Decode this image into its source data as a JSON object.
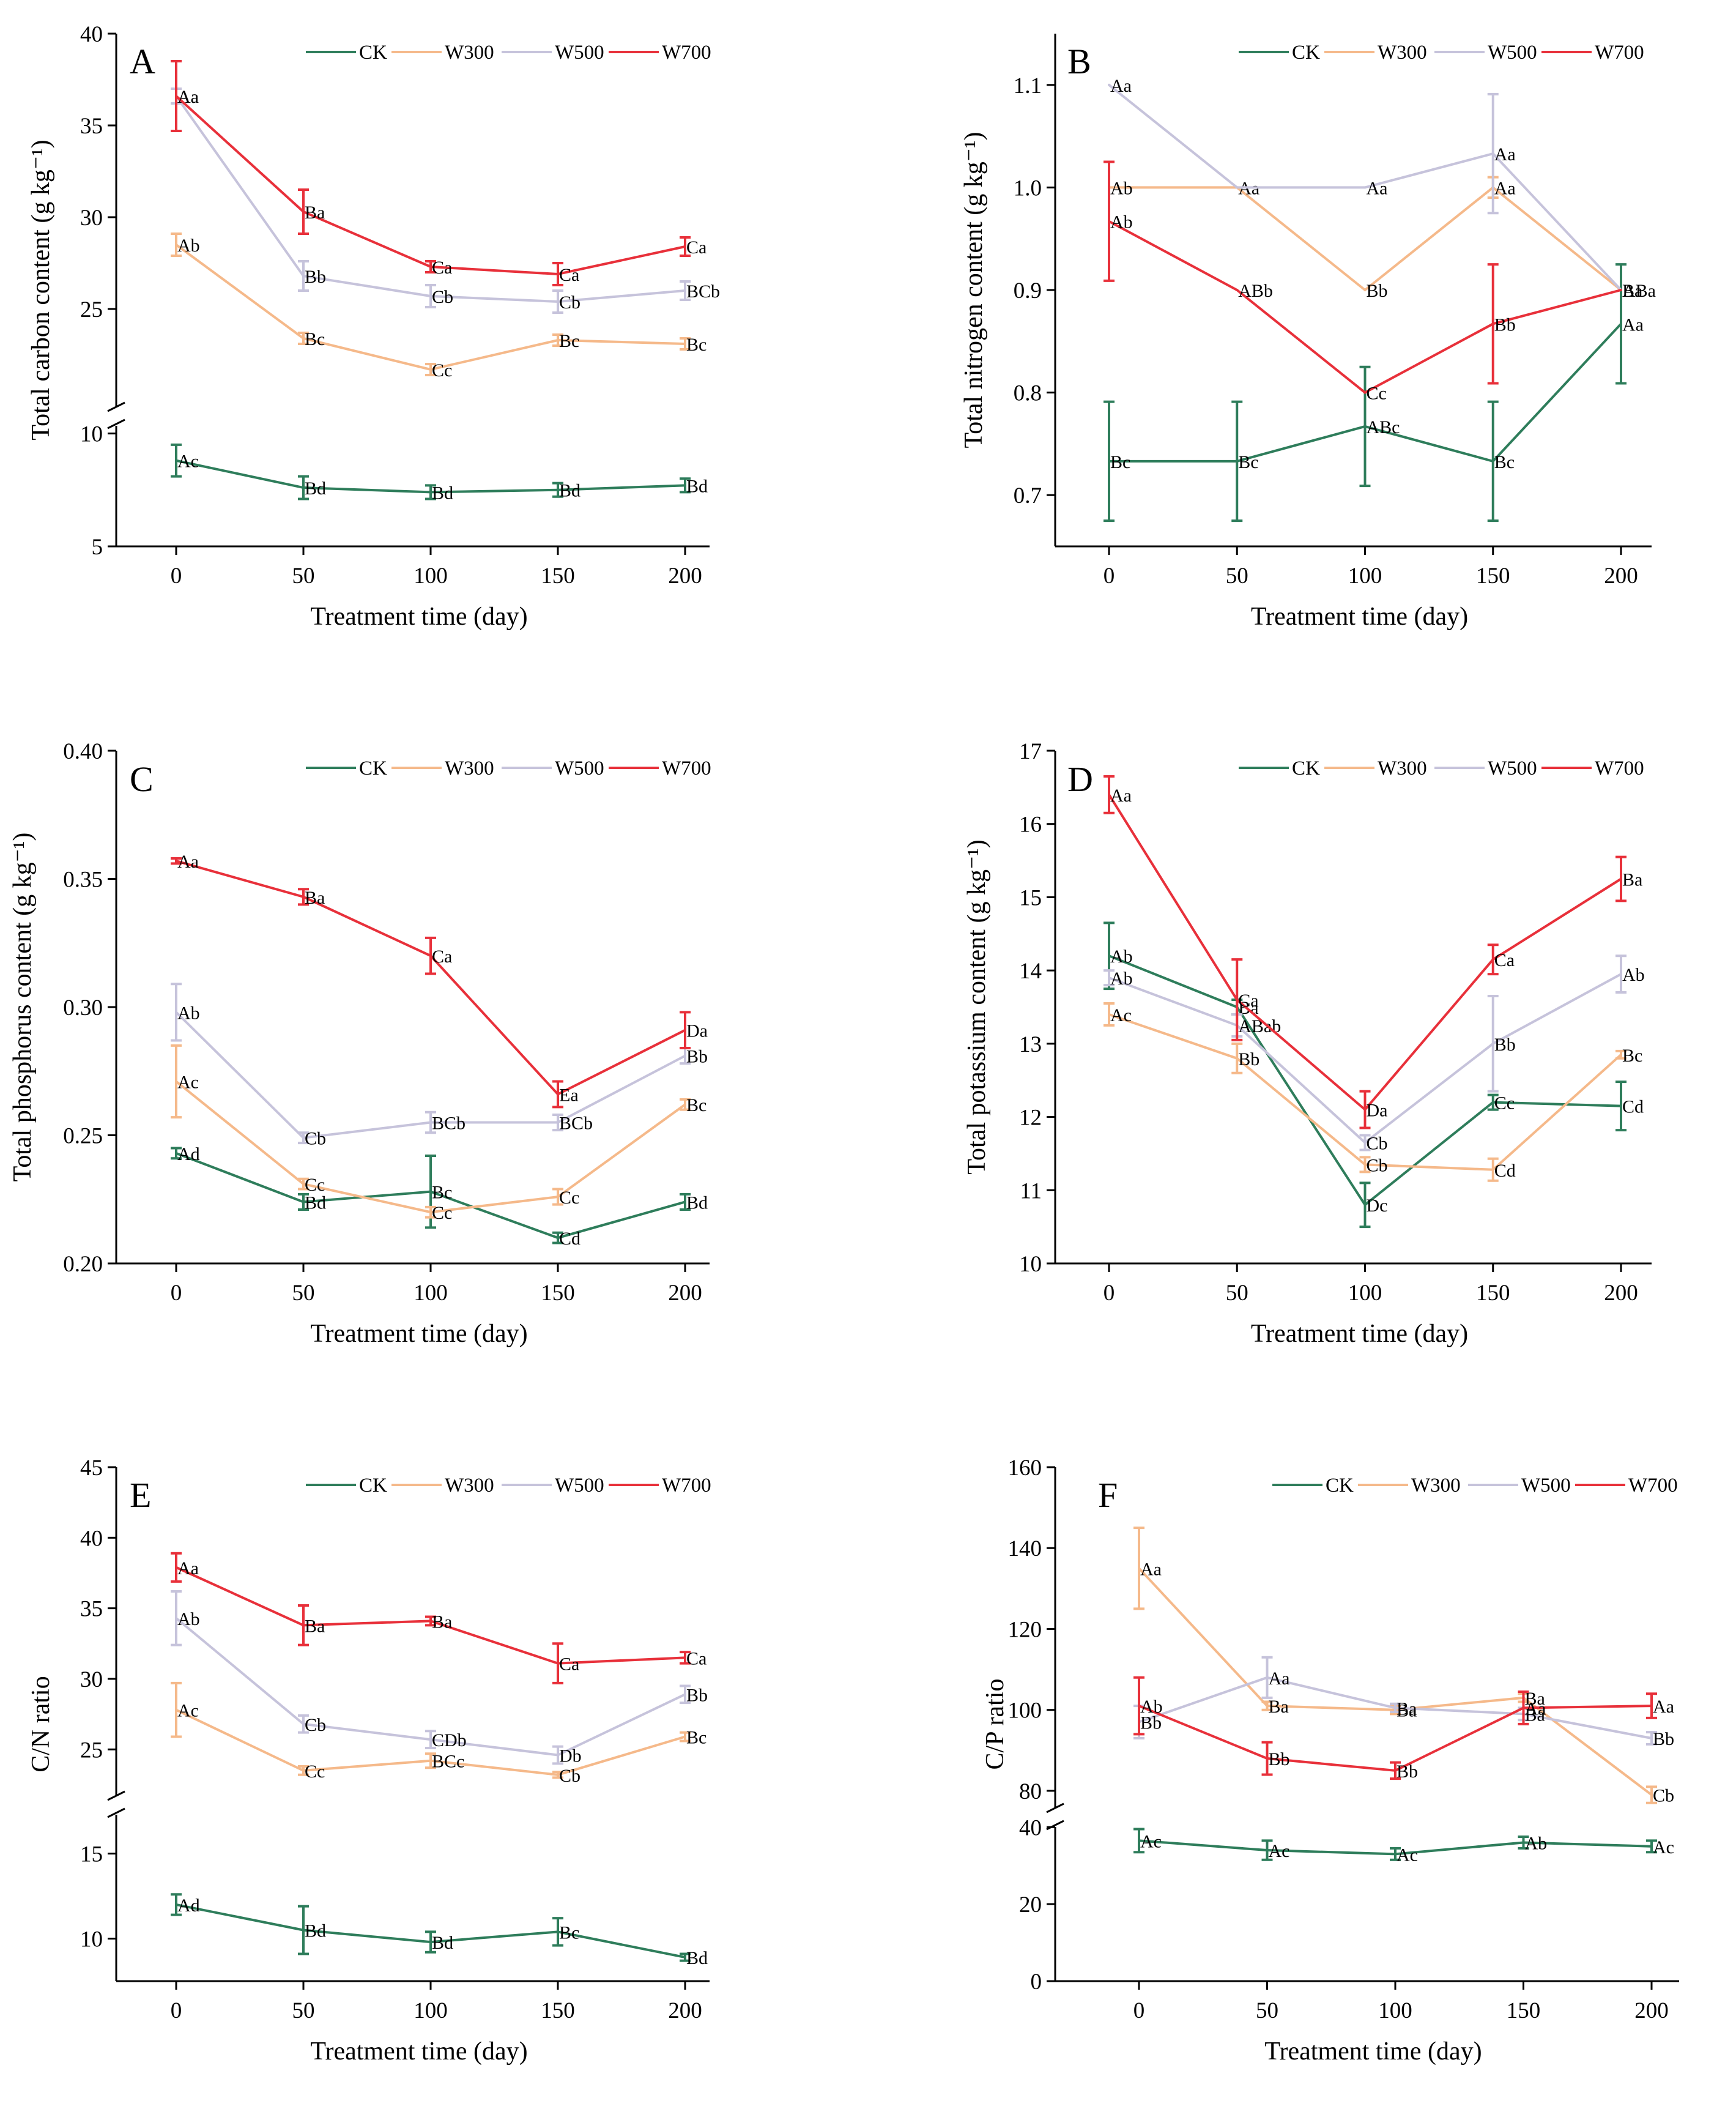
{
  "figure": {
    "x_axis_label": "Treatment time (day)",
    "x_ticks": [
      "0",
      "50",
      "100",
      "150",
      "200"
    ],
    "legend": [
      "CK",
      "W300",
      "W500",
      "W700"
    ],
    "colors": {
      "CK": "#2e7d5b",
      "W300": "#f5b98a",
      "W500": "#c6c3db",
      "W700": "#e8303a"
    }
  },
  "chart_data": [
    {
      "id": "A",
      "type": "line",
      "letter": "A",
      "ylabel": "Total carbon content (g kg⁻¹)",
      "x": [
        0,
        50,
        100,
        150,
        200
      ],
      "y_axis_break": {
        "lower_range": [
          5,
          10.5
        ],
        "upper_range": [
          19.5,
          40
        ]
      },
      "y_ticks": [
        "5",
        "10",
        "25",
        "30",
        "35",
        "40"
      ],
      "series": [
        {
          "name": "CK",
          "values": [
            8.8,
            7.6,
            7.4,
            7.5,
            7.7
          ],
          "errors": [
            0.7,
            0.5,
            0.3,
            0.3,
            0.3
          ],
          "labels": [
            "Ac",
            "Bd",
            "Bd",
            "Bd",
            "Bd"
          ]
        },
        {
          "name": "W300",
          "values": [
            28.5,
            23.4,
            21.7,
            23.3,
            23.1
          ],
          "errors": [
            0.6,
            0.3,
            0.3,
            0.3,
            0.3
          ],
          "labels": [
            "Ab",
            "Bc",
            "Cc",
            "Bc",
            "Bc"
          ]
        },
        {
          "name": "W500",
          "values": [
            36.6,
            26.8,
            25.7,
            25.4,
            26.0
          ],
          "errors": [
            0.4,
            0.8,
            0.6,
            0.6,
            0.5
          ],
          "labels": [
            "Aa",
            "Bb",
            "Cb",
            "Cb",
            "BCb"
          ]
        },
        {
          "name": "W700",
          "values": [
            36.6,
            30.3,
            27.3,
            26.9,
            28.4
          ],
          "errors": [
            1.9,
            1.2,
            0.3,
            0.6,
            0.5
          ],
          "labels": [
            "Aa",
            "Ba",
            "Ca",
            "Ca",
            "Ca"
          ]
        }
      ]
    },
    {
      "id": "B",
      "type": "line",
      "letter": "B",
      "ylabel": "Total nitrogen content (g kg⁻¹)",
      "x": [
        0,
        50,
        100,
        150,
        200
      ],
      "ylim": [
        0.65,
        1.15
      ],
      "y_ticks": [
        "0.7",
        "0.8",
        "0.9",
        "1.0",
        "1.1"
      ],
      "series": [
        {
          "name": "CK",
          "values": [
            0.733,
            0.733,
            0.767,
            0.733,
            0.867
          ],
          "errors": [
            0.058,
            0.058,
            0.058,
            0.058,
            0.058
          ],
          "labels": [
            "Bc",
            "Bc",
            "ABc",
            "Bc",
            "Aa"
          ]
        },
        {
          "name": "W300",
          "values": [
            1.0,
            1.0,
            0.9,
            1.0,
            0.9
          ],
          "errors": [
            0,
            0,
            0,
            0.01,
            0
          ],
          "labels": [
            "Ab",
            "Aa",
            "Bb",
            "Aa",
            "ABa"
          ]
        },
        {
          "name": "W500",
          "values": [
            1.1,
            1.0,
            1.0,
            1.033,
            0.9
          ],
          "errors": [
            0,
            0,
            0,
            0.058,
            0
          ],
          "labels": [
            "Aa",
            "",
            "Aa",
            "Aa",
            "Ba"
          ]
        },
        {
          "name": "W700",
          "values": [
            0.967,
            0.9,
            0.8,
            0.867,
            0.9
          ],
          "errors": [
            0.058,
            0,
            0,
            0.058,
            0
          ],
          "labels": [
            "Ab",
            "ABb",
            "Cc",
            "Bb",
            ""
          ]
        }
      ]
    },
    {
      "id": "C",
      "type": "line",
      "letter": "C",
      "ylabel": "Total phosphorus content (g kg⁻¹)",
      "x": [
        0,
        50,
        100,
        150,
        200
      ],
      "ylim": [
        0.2,
        0.4
      ],
      "y_ticks": [
        "0.20",
        "0.25",
        "0.30",
        "0.35",
        "0.40"
      ],
      "series": [
        {
          "name": "CK",
          "values": [
            0.243,
            0.224,
            0.228,
            0.21,
            0.224
          ],
          "errors": [
            0.002,
            0.003,
            0.014,
            0.002,
            0.003
          ],
          "labels": [
            "Ad",
            "Bd",
            "Bc",
            "Cd",
            "Bd"
          ]
        },
        {
          "name": "W300",
          "values": [
            0.271,
            0.231,
            0.22,
            0.226,
            0.262
          ],
          "errors": [
            0.014,
            0.002,
            0.002,
            0.003,
            0.002
          ],
          "labels": [
            "Ac",
            "Cc",
            "Cc",
            "Cc",
            "Bc"
          ]
        },
        {
          "name": "W500",
          "values": [
            0.298,
            0.249,
            0.255,
            0.255,
            0.281
          ],
          "errors": [
            0.011,
            0.002,
            0.004,
            0.003,
            0.003
          ],
          "labels": [
            "Ab",
            "Cb",
            "BCb",
            "BCb",
            "Bb"
          ]
        },
        {
          "name": "W700",
          "values": [
            0.357,
            0.343,
            0.32,
            0.266,
            0.291
          ],
          "errors": [
            0.001,
            0.003,
            0.007,
            0.005,
            0.007
          ],
          "labels": [
            "Aa",
            "Ba",
            "Ca",
            "Ea",
            "Da"
          ]
        }
      ]
    },
    {
      "id": "D",
      "type": "line",
      "letter": "D",
      "ylabel": "Total potassium content (g kg⁻¹)",
      "x": [
        0,
        50,
        100,
        150,
        200
      ],
      "ylim": [
        10,
        17
      ],
      "y_ticks": [
        "10",
        "11",
        "12",
        "13",
        "14",
        "15",
        "16",
        "17"
      ],
      "series": [
        {
          "name": "CK",
          "values": [
            14.2,
            13.5,
            10.8,
            12.2,
            12.15
          ],
          "errors": [
            0.45,
            0.1,
            0.3,
            0.1,
            0.33
          ],
          "labels": [
            "Ab",
            "Ba",
            "Dc",
            "Cc",
            "Cd"
          ]
        },
        {
          "name": "W300",
          "values": [
            13.4,
            12.8,
            11.35,
            11.28,
            12.85
          ],
          "errors": [
            0.15,
            0.2,
            0.1,
            0.15,
            0.05
          ],
          "labels": [
            "Ac",
            "Bb",
            "Cb",
            "Cd",
            "Bc"
          ]
        },
        {
          "name": "W500",
          "values": [
            13.9,
            13.25,
            11.65,
            13.0,
            13.95
          ],
          "errors": [
            0.1,
            0.15,
            0.1,
            0.65,
            0.25
          ],
          "labels": [
            "Ab",
            "ABab",
            "Cb",
            "Bb",
            "Ab"
          ]
        },
        {
          "name": "W700",
          "values": [
            16.4,
            13.6,
            12.1,
            14.15,
            15.25
          ],
          "errors": [
            0.25,
            0.55,
            0.25,
            0.2,
            0.3
          ],
          "labels": [
            "Aa",
            "Ca",
            "Da",
            "Ca",
            "Ba"
          ]
        }
      ]
    },
    {
      "id": "E",
      "type": "line",
      "letter": "E",
      "ylabel": "C/N ratio",
      "x": [
        0,
        50,
        100,
        150,
        200
      ],
      "y_axis_break": {
        "lower_range": [
          7.5,
          17.5
        ],
        "upper_range": [
          21.5,
          45
        ]
      },
      "y_ticks": [
        "10",
        "15",
        "25",
        "30",
        "35",
        "40",
        "45"
      ],
      "series": [
        {
          "name": "CK",
          "values": [
            12.0,
            10.5,
            9.8,
            10.4,
            8.9
          ],
          "errors": [
            0.6,
            1.4,
            0.6,
            0.8,
            0.2
          ],
          "labels": [
            "Ad",
            "Bd",
            "Bd",
            "Bc",
            "Bd"
          ]
        },
        {
          "name": "W300",
          "values": [
            27.8,
            23.5,
            24.2,
            23.2,
            25.9
          ],
          "errors": [
            1.9,
            0.3,
            0.5,
            0.2,
            0.3
          ],
          "labels": [
            "Ac",
            "Cc",
            "BCc",
            "Cb",
            "Bc"
          ]
        },
        {
          "name": "W500",
          "values": [
            34.3,
            26.8,
            25.7,
            24.6,
            28.9
          ],
          "errors": [
            1.9,
            0.6,
            0.6,
            0.6,
            0.6
          ],
          "labels": [
            "Ab",
            "Cb",
            "CDb",
            "Db",
            "Bb"
          ]
        },
        {
          "name": "W700",
          "values": [
            37.9,
            33.8,
            34.1,
            31.1,
            31.5
          ],
          "errors": [
            1.0,
            1.4,
            0.3,
            1.4,
            0.4
          ],
          "labels": [
            "Aa",
            "Ba",
            "Ba",
            "Ca",
            "Ca"
          ]
        }
      ]
    },
    {
      "id": "F",
      "type": "line",
      "letter": "F",
      "ylabel": "C/P ratio",
      "x": [
        0,
        50,
        100,
        150,
        200
      ],
      "y_axis_break": {
        "lower_range": [
          0,
          41
        ],
        "upper_range": [
          75,
          160
        ]
      },
      "y_ticks": [
        "0",
        "20",
        "40",
        "80",
        "100",
        "120",
        "140",
        "160"
      ],
      "series": [
        {
          "name": "CK",
          "values": [
            36.5,
            34.0,
            33.0,
            36.0,
            35.0
          ],
          "errors": [
            3.0,
            2.5,
            1.5,
            1.5,
            1.5
          ],
          "labels": [
            "Ac",
            "Ac",
            "Ac",
            "Ab",
            "Ac"
          ]
        },
        {
          "name": "W300",
          "values": [
            135.0,
            101.0,
            100.0,
            103.0,
            79.0
          ],
          "errors": [
            10.0,
            1.0,
            1.0,
            1.0,
            2.0
          ],
          "labels": [
            "Aa",
            "Ba",
            "Ba",
            "Ba",
            "Cb"
          ]
        },
        {
          "name": "W500",
          "values": [
            97.0,
            108.0,
            100.5,
            99.0,
            93.0
          ],
          "errors": [
            4.0,
            5.0,
            1.0,
            1.5,
            1.5
          ],
          "labels": [
            "Bb",
            "Aa",
            "Ba",
            "Ba",
            "Bb"
          ]
        },
        {
          "name": "W700",
          "values": [
            101.0,
            88.0,
            85.0,
            100.5,
            101.0
          ],
          "errors": [
            7.0,
            4.0,
            2.0,
            4.0,
            3.0
          ],
          "labels": [
            "Ab",
            "Bb",
            "Bb",
            "Aa",
            "Aa"
          ]
        }
      ]
    }
  ]
}
